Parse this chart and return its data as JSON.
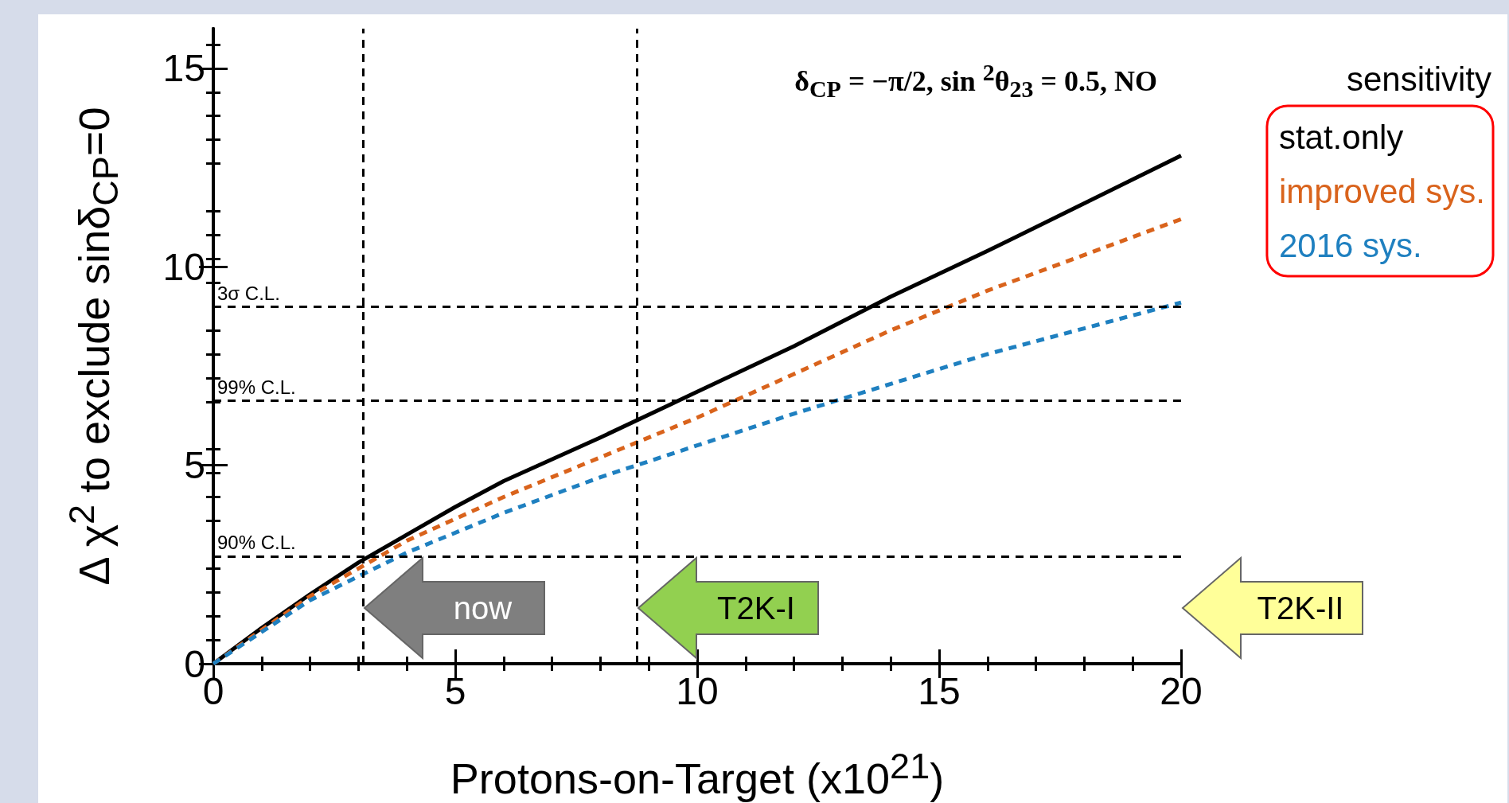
{
  "chart_data": {
    "type": "line",
    "xlabel": "Protons-on-Target (x10$^{21}$)",
    "ylabel": "Δ χ$^{2}$ to exclude sinδ$_{CP}$=0",
    "legend_title": "sensitivity",
    "xlim": [
      0,
      20
    ],
    "xticks": [
      0,
      5,
      10,
      15,
      20
    ],
    "ylim": [
      0,
      16
    ],
    "yticks": [
      0,
      5,
      10,
      15
    ],
    "grid": false,
    "legend": "right",
    "marker": "none",
    "series": [
      {
        "name": "stat.only",
        "color": "#000000",
        "line_style": "solid",
        "x": [
          0,
          1,
          2,
          3,
          4,
          5,
          6,
          8,
          10,
          12,
          14,
          16,
          18,
          20
        ],
        "values": [
          0,
          0.9,
          1.75,
          2.55,
          3.25,
          3.95,
          4.6,
          5.7,
          6.85,
          8.0,
          9.25,
          10.4,
          11.6,
          12.8
        ]
      },
      {
        "name": "improved sys.",
        "color": "#d9631c",
        "line_style": "dashed",
        "x": [
          0,
          2,
          4,
          6,
          8,
          10,
          12,
          14,
          16,
          18,
          20
        ],
        "values": [
          0,
          1.7,
          3.1,
          4.2,
          5.2,
          6.2,
          7.3,
          8.4,
          9.4,
          10.3,
          11.2
        ]
      },
      {
        "name": "2016 sys.",
        "color": "#1f80c0",
        "line_style": "dashed",
        "x": [
          0,
          2,
          4,
          6,
          8,
          10,
          12,
          14,
          16,
          18,
          20
        ],
        "values": [
          0,
          1.6,
          2.8,
          3.8,
          4.7,
          5.5,
          6.3,
          7.05,
          7.8,
          8.45,
          9.1
        ]
      }
    ],
    "ref_lines": [
      {
        "axis": "y",
        "value": 9,
        "label": "3σ C.L.",
        "line_style": "dashed",
        "color": "#000000"
      },
      {
        "axis": "y",
        "value": 6.63,
        "label": "99% C.L.",
        "line_style": "dashed",
        "color": "#000000"
      },
      {
        "axis": "y",
        "value": 2.71,
        "label": "90% C.L.",
        "line_style": "dashed",
        "color": "#000000"
      },
      {
        "axis": "x",
        "value": 3.1,
        "line_style": "dashed",
        "color": "#000000"
      },
      {
        "axis": "x",
        "value": 8.75,
        "line_style": "dashed",
        "color": "#000000"
      }
    ],
    "annotations": [
      "δ$_{CP}$ = −π/2, sin $^{2}$θ$_{23}$ = 0.5, NO",
      {
        "text": "now",
        "x": 3.1,
        "y": 1.4
      },
      {
        "text": "T2K-I",
        "x": 8.75,
        "y": 1.4
      },
      "T2K-II"
    ]
  }
}
